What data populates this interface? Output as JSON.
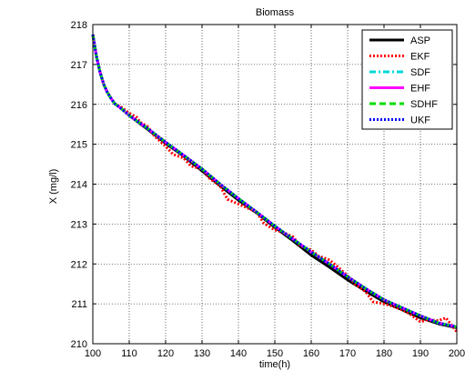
{
  "chart_data": {
    "type": "line",
    "title": "Biomass",
    "xlabel": "time(h)",
    "ylabel": "X (mg/l)",
    "xlim": [
      100,
      200
    ],
    "ylim": [
      210,
      218
    ],
    "xticks": [
      100,
      110,
      120,
      130,
      140,
      150,
      160,
      170,
      180,
      190,
      200
    ],
    "yticks": [
      210,
      211,
      212,
      213,
      214,
      215,
      216,
      217,
      218
    ],
    "grid": true,
    "legend_position": "top-right",
    "series": [
      {
        "name": "ASP",
        "color": "#000000",
        "style": "solid",
        "x": [
          100,
          101,
          102,
          103,
          104,
          105,
          106,
          108,
          110,
          115,
          120,
          125,
          130,
          135,
          140,
          145,
          150,
          155,
          160,
          165,
          170,
          175,
          180,
          185,
          190,
          195,
          200
        ],
        "y": [
          217.75,
          217.2,
          216.8,
          216.5,
          216.3,
          216.15,
          216.02,
          215.88,
          215.72,
          215.38,
          215.02,
          214.7,
          214.33,
          213.96,
          213.6,
          213.28,
          212.92,
          212.58,
          212.22,
          211.92,
          211.6,
          211.32,
          211.05,
          210.85,
          210.65,
          210.5,
          210.4
        ]
      },
      {
        "name": "EKF",
        "color": "#ff0000",
        "style": "dotted",
        "x": [
          100,
          101,
          102,
          103,
          104,
          105,
          106,
          108,
          110,
          112,
          113,
          115,
          117,
          120,
          122,
          125,
          127,
          130,
          132,
          135,
          137,
          140,
          142,
          145,
          147,
          150,
          152,
          155,
          157,
          160,
          162,
          165,
          167,
          170,
          172,
          175,
          177,
          180,
          182,
          185,
          187,
          190,
          192,
          195,
          197,
          200
        ],
        "y": [
          217.75,
          217.2,
          216.8,
          216.5,
          216.3,
          216.15,
          216.02,
          215.92,
          215.78,
          215.68,
          215.55,
          215.45,
          215.2,
          214.95,
          214.75,
          214.65,
          214.45,
          214.38,
          214.15,
          213.95,
          213.62,
          213.5,
          213.42,
          213.3,
          213.02,
          212.85,
          212.8,
          212.68,
          212.45,
          212.35,
          212.2,
          212.1,
          211.95,
          211.7,
          211.5,
          211.3,
          211.05,
          211.0,
          210.95,
          210.85,
          210.75,
          210.55,
          210.6,
          210.58,
          210.65,
          210.3
        ]
      },
      {
        "name": "SDF",
        "color": "#00d8d8",
        "style": "dashdot",
        "x": [
          100,
          101,
          102,
          103,
          104,
          105,
          106,
          108,
          110,
          115,
          120,
          125,
          130,
          135,
          140,
          145,
          150,
          155,
          160,
          165,
          170,
          175,
          180,
          185,
          190,
          195,
          200
        ],
        "y": [
          217.75,
          217.2,
          216.8,
          216.5,
          216.3,
          216.15,
          216.02,
          215.88,
          215.72,
          215.4,
          215.05,
          214.72,
          214.38,
          214.0,
          213.64,
          213.3,
          212.95,
          212.62,
          212.3,
          212.0,
          211.68,
          211.38,
          211.1,
          210.9,
          210.7,
          210.52,
          210.42
        ]
      },
      {
        "name": "EHF",
        "color": "#ff00ff",
        "style": "solid",
        "x": [
          100,
          101,
          102,
          103,
          104,
          105,
          106,
          108,
          110,
          115,
          120,
          125,
          130,
          135,
          140,
          145,
          150,
          155,
          160,
          165,
          170,
          175,
          180,
          185,
          190,
          195,
          200
        ],
        "y": [
          217.75,
          217.2,
          216.8,
          216.5,
          216.3,
          216.15,
          216.02,
          215.88,
          215.72,
          215.4,
          215.05,
          214.72,
          214.38,
          214.0,
          213.64,
          213.3,
          212.95,
          212.62,
          212.3,
          212.0,
          211.68,
          211.38,
          211.1,
          210.9,
          210.7,
          210.52,
          210.42
        ]
      },
      {
        "name": "SDHF",
        "color": "#00dd00",
        "style": "dashed",
        "x": [
          100,
          101,
          102,
          103,
          104,
          105,
          106,
          108,
          110,
          115,
          120,
          125,
          130,
          135,
          140,
          145,
          150,
          155,
          160,
          165,
          170,
          175,
          180,
          185,
          190,
          195,
          200
        ],
        "y": [
          217.75,
          217.2,
          216.8,
          216.5,
          216.3,
          216.15,
          216.02,
          215.88,
          215.72,
          215.4,
          215.05,
          214.72,
          214.38,
          214.0,
          213.64,
          213.3,
          212.95,
          212.62,
          212.3,
          212.0,
          211.68,
          211.38,
          211.1,
          210.9,
          210.7,
          210.52,
          210.42
        ]
      },
      {
        "name": "UKF",
        "color": "#0000ff",
        "style": "dotted",
        "x": [
          100,
          101,
          102,
          103,
          104,
          105,
          106,
          108,
          110,
          115,
          120,
          125,
          130,
          135,
          140,
          145,
          150,
          155,
          160,
          165,
          170,
          175,
          180,
          185,
          190,
          195,
          200
        ],
        "y": [
          217.75,
          217.2,
          216.8,
          216.5,
          216.3,
          216.15,
          216.02,
          215.88,
          215.72,
          215.4,
          215.05,
          214.72,
          214.38,
          214.0,
          213.64,
          213.3,
          212.95,
          212.62,
          212.3,
          212.0,
          211.68,
          211.38,
          211.1,
          210.9,
          210.7,
          210.52,
          210.42
        ]
      }
    ]
  }
}
